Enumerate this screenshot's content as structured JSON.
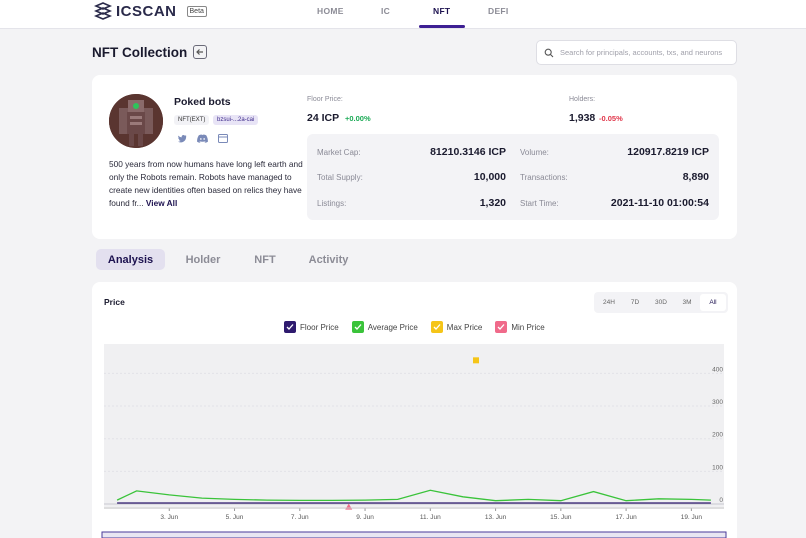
{
  "nav": {
    "logo_text": "ICSCAN",
    "beta": "Beta",
    "tabs": [
      "HOME",
      "IC",
      "NFT",
      "DEFI"
    ],
    "active_tab": "NFT"
  },
  "header": {
    "title": "NFT Collection",
    "search_placeholder": "Search for principals, accounts, txs, and neurons"
  },
  "collection": {
    "name": "Poked bots",
    "standard": "NFT(EXT)",
    "canister_id": "bzsui-...2a-cai",
    "description": "500 years from now humans have long left earth and only the Robots remain. Robots have managed to create new identities often based on relics they have found fr...",
    "view_all": "View All",
    "floor_price_label": "Floor Price:",
    "floor_price": "24 ICP",
    "floor_change": "+0.00%",
    "holders_label": "Holders:",
    "holders": "1,938",
    "holders_change": "-0.05%",
    "stats": {
      "market_cap_label": "Market Cap:",
      "market_cap": "81210.3146 ICP",
      "total_supply_label": "Total Supply:",
      "total_supply": "10,000",
      "listings_label": "Listings:",
      "listings": "1,320",
      "volume_label": "Volume:",
      "volume": "120917.8219 ICP",
      "transactions_label": "Transactions:",
      "transactions": "8,890",
      "start_time_label": "Start Time:",
      "start_time": "2021-11-10 01:00:54"
    }
  },
  "subtabs": [
    "Analysis",
    "Holder",
    "NFT",
    "Activity"
  ],
  "active_subtab": "Analysis",
  "colors": {
    "accent": "#3d1f93",
    "floor": "#2e1a6e",
    "average": "#3ac33a",
    "max": "#f5c518",
    "min": "#f06a8a",
    "positive": "#1aaa55",
    "negative": "#e0364a"
  },
  "chart_data": {
    "type": "line",
    "title": "Price",
    "ranges": [
      "24H",
      "7D",
      "30D",
      "3M",
      "All"
    ],
    "active_range": "All",
    "legend": [
      "Floor Price",
      "Average Price",
      "Max Price",
      "Min Price"
    ],
    "ylim": [
      0,
      500
    ],
    "y_ticks": [
      0,
      100,
      200,
      300,
      400
    ],
    "x_ticks": [
      "3. Jun",
      "5. Jun",
      "7. Jun",
      "9. Jun",
      "11. Jun",
      "13. Jun",
      "15. Jun",
      "17. Jun",
      "19. Jun"
    ],
    "x": [
      1.4,
      2,
      3,
      4,
      5,
      6,
      7,
      8,
      9,
      10,
      11,
      12,
      13,
      14,
      15,
      16,
      17,
      18,
      19,
      19.6
    ],
    "series": [
      {
        "name": "Floor Price",
        "values": [
          3,
          3,
          3,
          3,
          3,
          3,
          3,
          3,
          3,
          3,
          3,
          3,
          3,
          3,
          3,
          3,
          3,
          3,
          3,
          3
        ]
      },
      {
        "name": "Average Price",
        "values": [
          12,
          40,
          28,
          18,
          14,
          12,
          11,
          11,
          12,
          14,
          42,
          22,
          10,
          14,
          10,
          38,
          10,
          16,
          14,
          12
        ]
      },
      {
        "name": "Max Price",
        "markers": [
          {
            "x": 12.4,
            "y": 440
          }
        ]
      },
      {
        "name": "Min Price",
        "markers": [
          {
            "x": 8.5,
            "y": -8
          }
        ]
      }
    ]
  }
}
